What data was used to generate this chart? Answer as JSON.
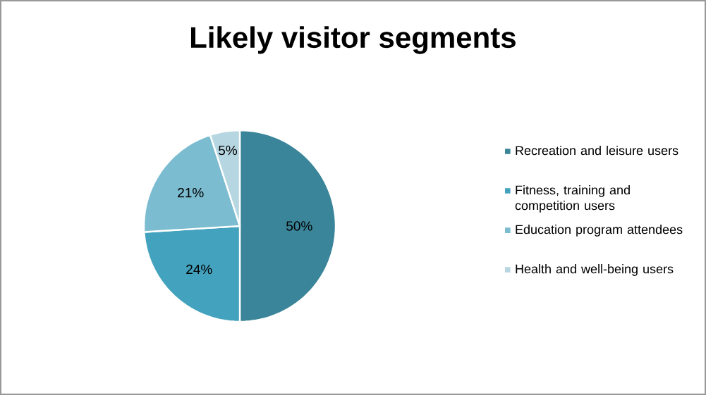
{
  "chart_data": {
    "type": "pie",
    "title": "Likely visitor segments",
    "categories": [
      "Recreation and leisure users",
      "Fitness, training and competition users",
      "Education program attendees",
      "Health and well-being users"
    ],
    "values": [
      50,
      24,
      21,
      5
    ],
    "value_labels": [
      "50%",
      "24%",
      "21%",
      "5%"
    ],
    "colors": [
      "#3a8599",
      "#43a2bd",
      "#7bbcd0",
      "#b6d7e2"
    ],
    "legend": "right"
  }
}
